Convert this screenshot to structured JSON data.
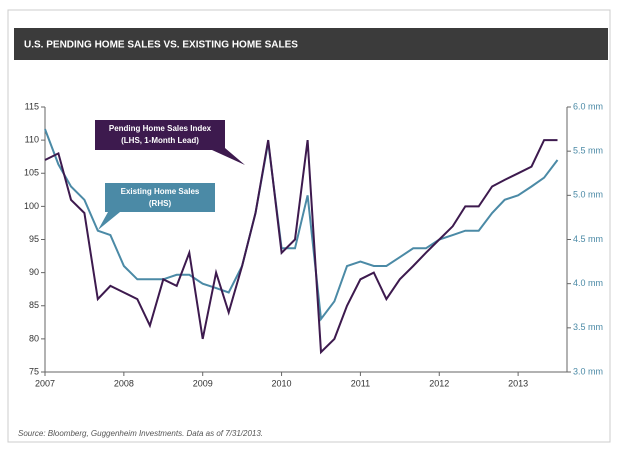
{
  "chart_data": {
    "type": "line",
    "title": "U.S. PENDING HOME SALES VS. EXISTING HOME SALES",
    "source": "Source: Bloomberg, Guggenheim Investments. Data as of 7/31/2013.",
    "x": [
      2007.0,
      2007.17,
      2007.33,
      2007.5,
      2007.67,
      2007.83,
      2008.0,
      2008.17,
      2008.33,
      2008.5,
      2008.67,
      2008.83,
      2009.0,
      2009.17,
      2009.33,
      2009.5,
      2009.67,
      2009.83,
      2010.0,
      2010.17,
      2010.33,
      2010.5,
      2010.67,
      2010.83,
      2011.0,
      2011.17,
      2011.33,
      2011.5,
      2011.67,
      2011.83,
      2012.0,
      2012.17,
      2012.33,
      2012.5,
      2012.67,
      2012.83,
      2013.0,
      2013.17,
      2013.33,
      2013.5
    ],
    "series": [
      {
        "name": "Pending Home Sales Index",
        "note": "(LHS, 1-Month Lead)",
        "color": "#3d1a4e",
        "values": [
          107,
          108,
          101,
          99,
          86,
          88,
          87,
          86,
          82,
          89,
          88,
          93,
          80,
          90,
          84,
          91,
          99,
          110,
          93,
          95,
          110,
          78,
          80,
          85,
          89,
          90,
          86,
          89,
          91,
          93,
          95,
          97,
          100,
          100,
          103,
          104,
          105,
          106,
          110,
          110
        ]
      },
      {
        "name": "Existing Home Sales",
        "note": "(RHS)",
        "color": "#4b8aa6",
        "axis": "y2",
        "values": [
          5.75,
          5.35,
          5.1,
          4.95,
          4.6,
          4.55,
          4.2,
          4.05,
          4.05,
          4.05,
          4.1,
          4.1,
          4.0,
          3.95,
          3.9,
          4.2,
          4.8,
          5.6,
          4.4,
          4.4,
          5.0,
          3.6,
          3.8,
          4.2,
          4.25,
          4.2,
          4.2,
          4.3,
          4.4,
          4.4,
          4.5,
          4.55,
          4.6,
          4.6,
          4.8,
          4.95,
          5.0,
          5.1,
          5.2,
          5.4
        ]
      }
    ],
    "xlim": [
      2007,
      2013.62
    ],
    "xticks": [
      2007,
      2008,
      2009,
      2010,
      2011,
      2012,
      2013
    ],
    "ylim": [
      75,
      115
    ],
    "yticks": [
      75,
      80,
      85,
      90,
      95,
      100,
      105,
      110,
      115
    ],
    "y2lim": [
      3.0,
      6.0
    ],
    "y2ticks": [
      {
        "value": 3.0,
        "label": "3.0 mm"
      },
      {
        "value": 3.5,
        "label": "3.5 mm"
      },
      {
        "value": 4.0,
        "label": "4.0 mm"
      },
      {
        "value": 4.5,
        "label": "4.5 mm"
      },
      {
        "value": 5.0,
        "label": "5.0 mm"
      },
      {
        "value": 5.5,
        "label": "5.5 mm"
      },
      {
        "value": 6.0,
        "label": "6.0 mm"
      }
    ]
  }
}
